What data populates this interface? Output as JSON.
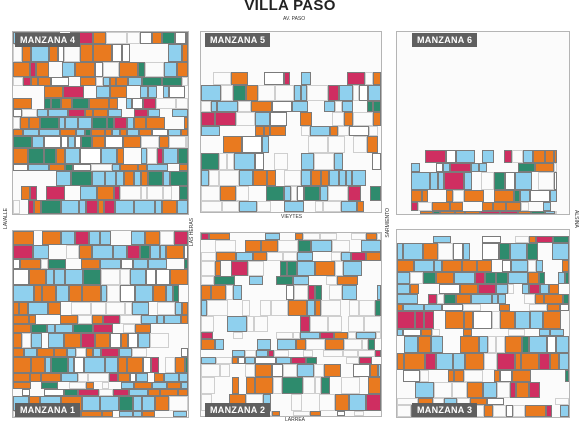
{
  "title": "VILLA PASO",
  "streets": {
    "top": "AV. PASO",
    "middle": "VIEYTES",
    "bottom": "LARREA",
    "left": "LAVALLE",
    "center_left": "LAS HERAS",
    "center_right": "SARMIENTO",
    "right": "ALSINA"
  },
  "blocks": [
    {
      "id": "m4",
      "label": "MANZANA 4"
    },
    {
      "id": "m5",
      "label": "MANZANA 5"
    },
    {
      "id": "m6",
      "label": "MANZANA 6"
    },
    {
      "id": "m1",
      "label": "MANZANA 1"
    },
    {
      "id": "m2",
      "label": "MANZANA 2"
    },
    {
      "id": "m3",
      "label": "MANZANA 3"
    }
  ],
  "colors": {
    "orange": "#e97a1f",
    "light_blue": "#8fd0ee",
    "green": "#2e8b6d",
    "magenta": "#cf2e61",
    "background": "#ffffff"
  }
}
